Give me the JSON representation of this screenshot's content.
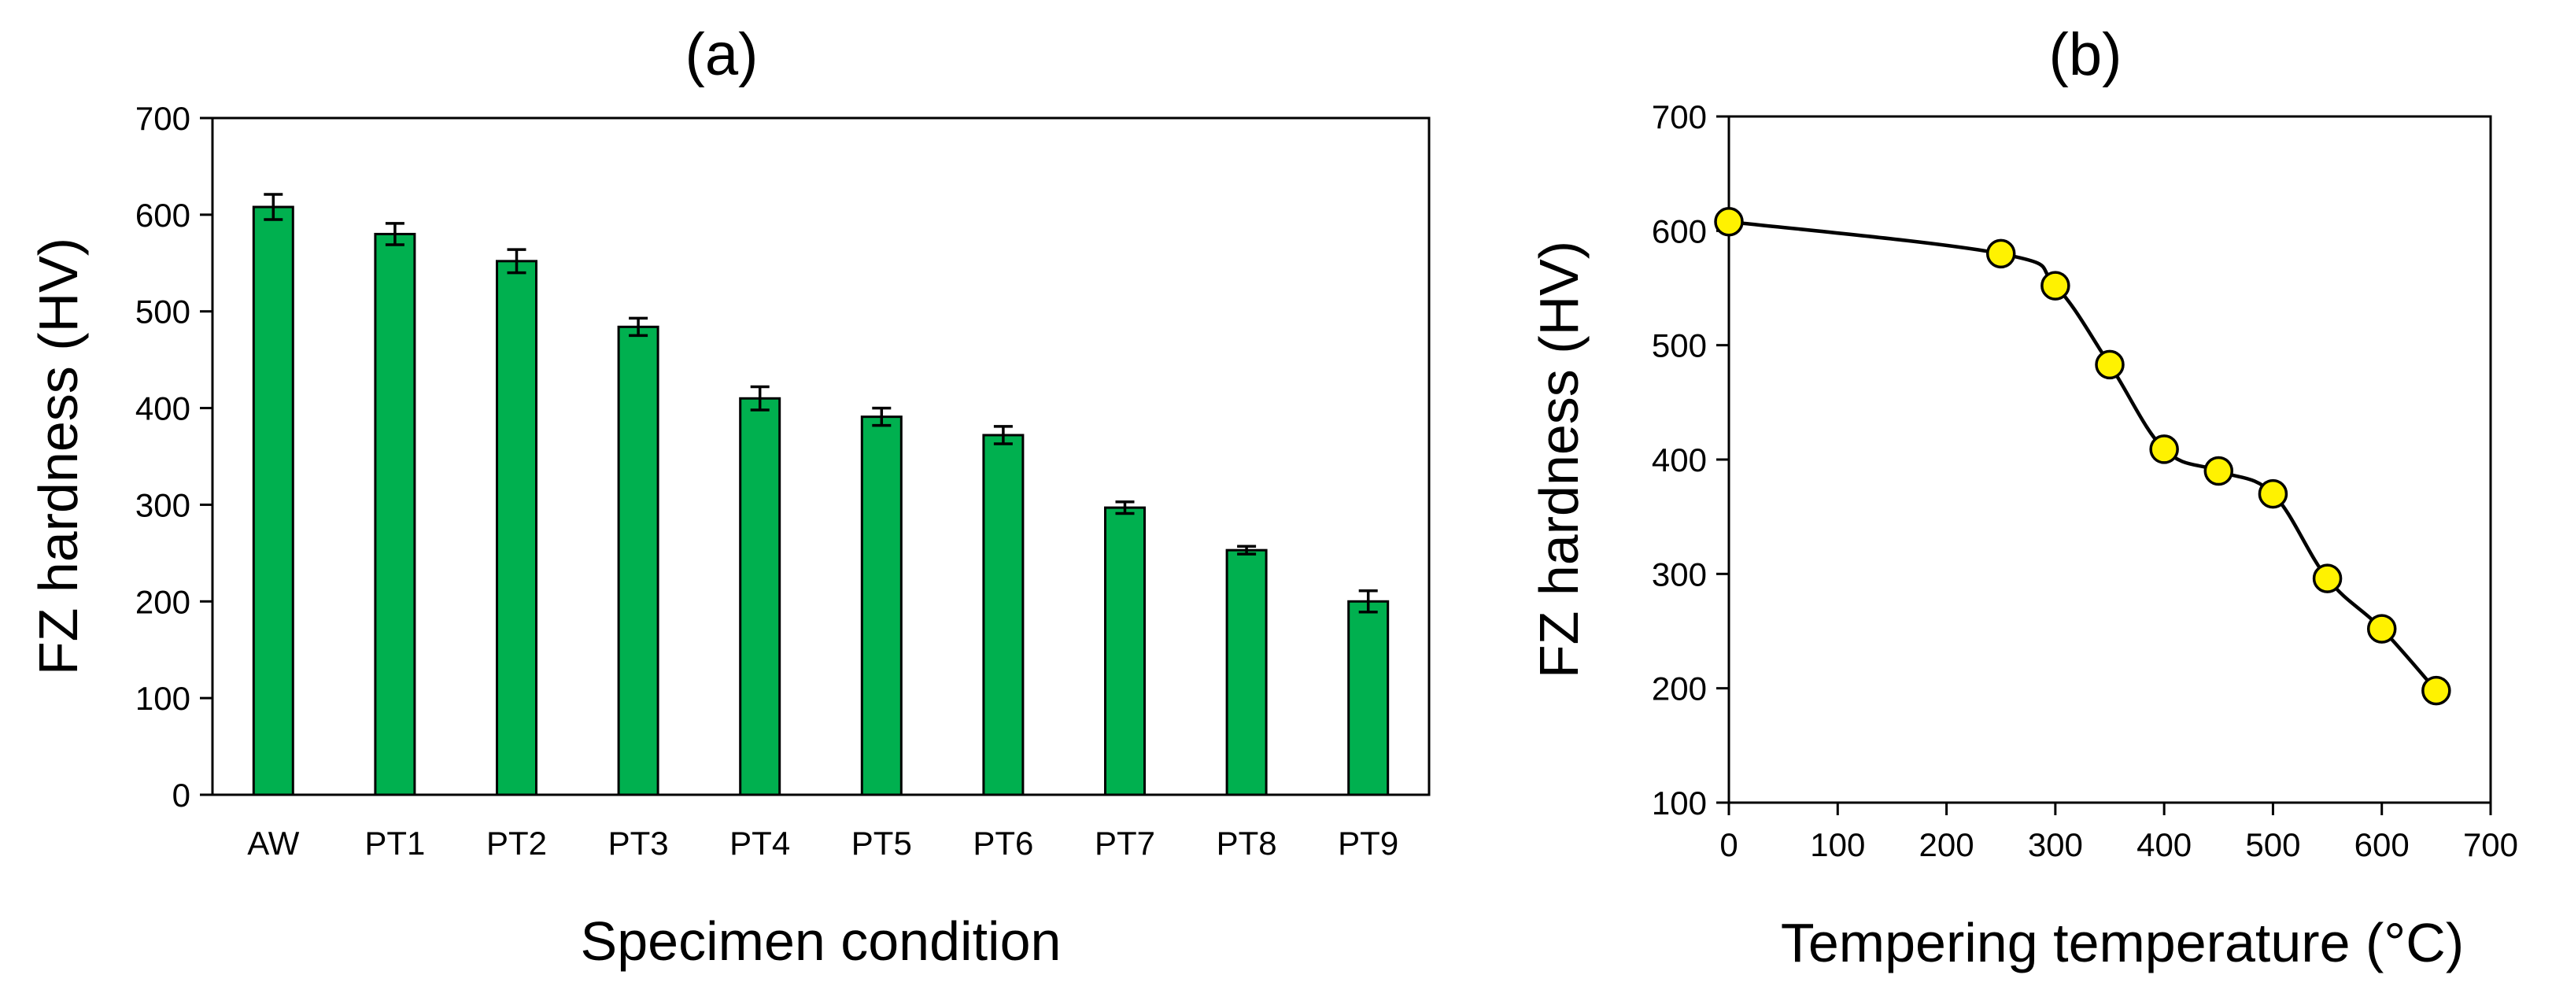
{
  "chart_data": [
    {
      "panel": "(a)",
      "type": "bar",
      "title": "(a)",
      "xlabel": "Specimen condition",
      "ylabel": "FZ hardness (HV)",
      "ylim": [
        0,
        700
      ],
      "yticks": [
        0,
        100,
        200,
        300,
        400,
        500,
        600,
        700
      ],
      "categories": [
        "AW",
        "PT1",
        "PT2",
        "PT3",
        "PT4",
        "PT5",
        "PT6",
        "PT7",
        "PT8",
        "PT9"
      ],
      "values": [
        608,
        580,
        552,
        484,
        410,
        391,
        372,
        297,
        253,
        200
      ],
      "errors": [
        13,
        11,
        12,
        9,
        12,
        9,
        9,
        6,
        4,
        11
      ],
      "bar_color": "#00b04f",
      "grid": false,
      "error_bars": true
    },
    {
      "panel": "(b)",
      "type": "line",
      "title": "(b)",
      "xlabel": "Tempering temperature (°C)",
      "ylabel": "FZ hardness (HV)",
      "xlim": [
        0,
        700
      ],
      "ylim": [
        100,
        700
      ],
      "xticks": [
        0,
        100,
        200,
        300,
        400,
        500,
        600,
        700
      ],
      "yticks": [
        100,
        200,
        300,
        400,
        500,
        600,
        700
      ],
      "x": [
        0,
        250,
        300,
        350,
        400,
        450,
        500,
        550,
        600,
        650
      ],
      "y": [
        608,
        580,
        552,
        483,
        409,
        390,
        370,
        296,
        252,
        198
      ],
      "marker": "circle",
      "marker_color": "#fff200",
      "line_color": "#000000",
      "smooth": true,
      "grid": false
    }
  ]
}
